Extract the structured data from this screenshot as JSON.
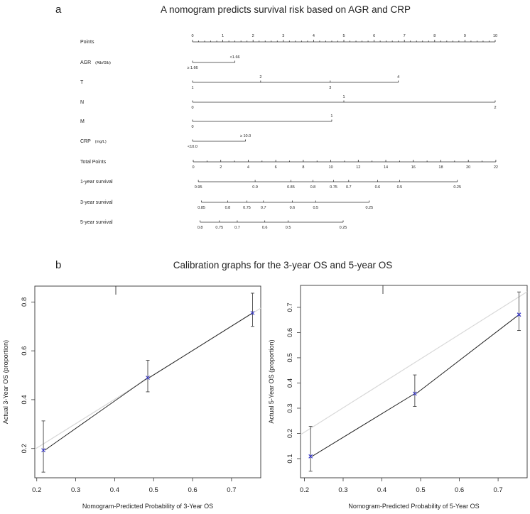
{
  "panel_a": {
    "letter": "a",
    "title": "A nomogram predicts survival risk based on AGR and CRP"
  },
  "panel_b": {
    "letter": "b",
    "title": "Calibration graphs for the 3-year OS and 5-year OS"
  },
  "chart_data": [
    {
      "type": "nomogram",
      "title": "A nomogram predicts survival risk based on AGR and CRP",
      "points_scale": {
        "label": "Points",
        "min": 0,
        "max": 10,
        "major_step": 1,
        "minor_step": 0.2
      },
      "variables": [
        {
          "name": "AGR",
          "unit": "(Alb/Glb)",
          "levels": [
            {
              "label": "≥ 1.66",
              "points": 0,
              "side": "below"
            },
            {
              "label": "<1.66",
              "points": 1.4,
              "side": "above"
            }
          ]
        },
        {
          "name": "T",
          "unit": "",
          "levels": [
            {
              "label": "1",
              "points": 0,
              "side": "below"
            },
            {
              "label": "2",
              "points": 2.25,
              "side": "above"
            },
            {
              "label": "3",
              "points": 4.55,
              "side": "below"
            },
            {
              "label": "4",
              "points": 6.8,
              "side": "above"
            }
          ]
        },
        {
          "name": "N",
          "unit": "",
          "levels": [
            {
              "label": "0",
              "points": 0,
              "side": "below"
            },
            {
              "label": "1",
              "points": 5,
              "side": "above"
            },
            {
              "label": "2",
              "points": 10,
              "side": "below"
            }
          ]
        },
        {
          "name": "M",
          "unit": "",
          "levels": [
            {
              "label": "0",
              "points": 0,
              "side": "below"
            },
            {
              "label": "1",
              "points": 4.6,
              "side": "above"
            }
          ]
        },
        {
          "name": "CRP",
          "unit": "(mg/L)",
          "levels": [
            {
              "label": "<10.0",
              "points": 0,
              "side": "below"
            },
            {
              "label": "≥ 10.0",
              "points": 1.75,
              "side": "above"
            }
          ]
        }
      ],
      "total_points": {
        "label": "Total Points",
        "min": 0,
        "max": 22,
        "major_step": 2,
        "minor_step": 1
      },
      "survival_scales": [
        {
          "label": "1-year survival",
          "ticks": [
            {
              "label": "0.95",
              "total_points": 0.37
            },
            {
              "label": "0.9",
              "total_points": 4.5
            },
            {
              "label": "0.85",
              "total_points": 7.1
            },
            {
              "label": "0.8",
              "total_points": 8.7
            },
            {
              "label": "0.75",
              "total_points": 10.2
            },
            {
              "label": "0.7",
              "total_points": 11.3
            },
            {
              "label": "0.6",
              "total_points": 13.4
            },
            {
              "label": "0.5",
              "total_points": 15.0
            },
            {
              "label": "0.25",
              "total_points": 19.2
            }
          ]
        },
        {
          "label": "3-year survival",
          "ticks": [
            {
              "label": "0.85",
              "total_points": 0.6
            },
            {
              "label": "0.8",
              "total_points": 2.5
            },
            {
              "label": "0.75",
              "total_points": 3.9
            },
            {
              "label": "0.7",
              "total_points": 5.1
            },
            {
              "label": "0.6",
              "total_points": 7.2
            },
            {
              "label": "0.5",
              "total_points": 8.9
            },
            {
              "label": "0.25",
              "total_points": 12.8
            }
          ]
        },
        {
          "label": "5-year survival",
          "ticks": [
            {
              "label": "0.8",
              "total_points": 0.5
            },
            {
              "label": "0.75",
              "total_points": 1.9
            },
            {
              "label": "0.7",
              "total_points": 3.2
            },
            {
              "label": "0.6",
              "total_points": 5.2
            },
            {
              "label": "0.5",
              "total_points": 6.9
            },
            {
              "label": "0.25",
              "total_points": 10.9
            }
          ]
        }
      ]
    },
    {
      "type": "scatter",
      "xlabel": "Nomogram-Predicted Probability of 3-Year OS",
      "ylabel": "Actual 3-Year OS (proportion)",
      "xlim": [
        0.195,
        0.775
      ],
      "ylim": [
        0.08,
        0.865
      ],
      "xticks": [
        "0.2",
        "0.3",
        "0.4",
        "0.5",
        "0.6",
        "0.7"
      ],
      "yticks": [
        "0.2",
        "0.4",
        "0.6",
        "0.8"
      ],
      "points": [
        {
          "x": 0.217,
          "y": 0.193,
          "lower": 0.103,
          "upper": 0.313
        },
        {
          "x": 0.485,
          "y": 0.49,
          "lower": 0.432,
          "upper": 0.561
        },
        {
          "x": 0.754,
          "y": 0.755,
          "lower": 0.7,
          "upper": 0.836
        }
      ],
      "ideal_line": [
        [
          0.195,
          0.197
        ],
        [
          0.775,
          0.775
        ]
      ],
      "point_color": "#3333cc",
      "line_color": "#222222",
      "ideal_color": "#d8d8d8"
    },
    {
      "type": "scatter",
      "xlabel": "Nomogram-Predicted Probability of 5-Year OS",
      "ylabel": "Actual 5-Year OS (proportion)",
      "xlim": [
        0.19,
        0.775
      ],
      "ylim": [
        0.024,
        0.787
      ],
      "xticks": [
        "0.2",
        "0.3",
        "0.4",
        "0.5",
        "0.6",
        "0.7"
      ],
      "yticks": [
        "0.1",
        "0.2",
        "0.3",
        "0.4",
        "0.5",
        "0.6",
        "0.7"
      ],
      "points": [
        {
          "x": 0.216,
          "y": 0.109,
          "lower": 0.05,
          "upper": 0.228
        },
        {
          "x": 0.485,
          "y": 0.358,
          "lower": 0.307,
          "upper": 0.432
        },
        {
          "x": 0.754,
          "y": 0.671,
          "lower": 0.608,
          "upper": 0.761
        }
      ],
      "ideal_line": [
        [
          0.19,
          0.195
        ],
        [
          0.775,
          0.762
        ]
      ],
      "point_color": "#3333cc",
      "line_color": "#222222",
      "ideal_color": "#d8d8d8"
    }
  ]
}
